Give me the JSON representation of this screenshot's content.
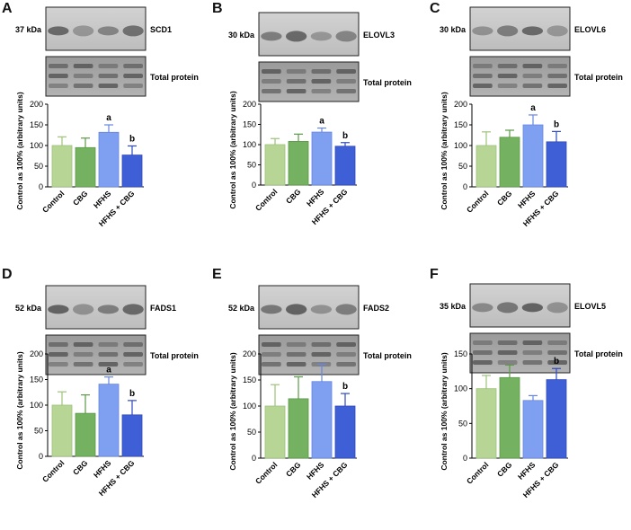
{
  "colors": {
    "control": "#b7d696",
    "control_stroke": "#9cc279",
    "cbg": "#74b160",
    "cbg_stroke": "#5b9a48",
    "hfhs": "#7f9ff0",
    "hfhs_stroke": "#6686e2",
    "hfhs_cbg": "#3f5fd6",
    "hfhs_cbg_stroke": "#2e49bf",
    "blot_border": "#222222"
  },
  "blot_labels": {
    "total_protein": "Total protein"
  },
  "chart_data": [
    {
      "panel": "A",
      "type": "bar",
      "protein": "SCD1",
      "kda": "37 kDa",
      "ylabel": "Control as 100% (arbitrary units)",
      "ylim": [
        0,
        200
      ],
      "yticks": [
        0,
        50,
        100,
        150,
        200
      ],
      "categories": [
        "Control",
        "CBG",
        "HFHS",
        "HFHS + CBG"
      ],
      "values": [
        100,
        95,
        132,
        77
      ],
      "errors": [
        21,
        23,
        18,
        22
      ],
      "annotations": [
        "",
        "",
        "a",
        "b"
      ]
    },
    {
      "panel": "B",
      "type": "bar",
      "protein": "ELOVL3",
      "kda": "30 kDa",
      "ylabel": "Control as 100% (arbitrary units)",
      "ylim": [
        0,
        200
      ],
      "yticks": [
        0,
        50,
        100,
        150,
        200
      ],
      "categories": [
        "Control",
        "CBG",
        "HFHS",
        "HFHS + CBG"
      ],
      "values": [
        100,
        108,
        131,
        96
      ],
      "errors": [
        15,
        18,
        10,
        9
      ],
      "annotations": [
        "",
        "",
        "a",
        "b"
      ]
    },
    {
      "panel": "C",
      "type": "bar",
      "protein": "ELOVL6",
      "kda": "30 kDa",
      "ylabel": "Control as 100% (arbitrary units)",
      "ylim": [
        0,
        200
      ],
      "yticks": [
        0,
        50,
        100,
        150,
        200
      ],
      "categories": [
        "Control",
        "CBG",
        "HFHS",
        "HFHS + CBG"
      ],
      "values": [
        100,
        120,
        150,
        109
      ],
      "errors": [
        33,
        17,
        24,
        25
      ],
      "annotations": [
        "",
        "",
        "a",
        "b"
      ]
    },
    {
      "panel": "D",
      "type": "bar",
      "protein": "FADS1",
      "kda": "52 kDa",
      "ylabel": "Control as 100% (arbitrary units)",
      "ylim": [
        0,
        200
      ],
      "yticks": [
        0,
        50,
        100,
        150,
        200
      ],
      "categories": [
        "Control",
        "CBG",
        "HFHS",
        "HFHS + CBG"
      ],
      "values": [
        100,
        84,
        141,
        81
      ],
      "errors": [
        26,
        36,
        14,
        28
      ],
      "annotations": [
        "",
        "",
        "a",
        "b"
      ]
    },
    {
      "panel": "E",
      "type": "bar",
      "protein": "FADS2",
      "kda": "52 kDa",
      "ylabel": "Control as 100% (arbitrary units)",
      "ylim": [
        0,
        200
      ],
      "yticks": [
        0,
        50,
        100,
        150,
        200
      ],
      "categories": [
        "Control",
        "CBG",
        "HFHS",
        "HFHS + CBG"
      ],
      "values": [
        100,
        114,
        147,
        100
      ],
      "errors": [
        41,
        42,
        33,
        24
      ],
      "annotations": [
        "",
        "",
        "",
        "b"
      ]
    },
    {
      "panel": "F",
      "type": "bar",
      "protein": "ELOVL5",
      "kda": "35 kDa",
      "ylabel": "Control as 100% (arbitrary units)",
      "ylim": [
        0,
        150
      ],
      "yticks": [
        0,
        50,
        100,
        150
      ],
      "categories": [
        "Control",
        "CBG",
        "HFHS",
        "HFHS + CBG"
      ],
      "values": [
        100,
        116,
        83,
        113
      ],
      "errors": [
        19,
        18,
        7,
        16
      ],
      "annotations": [
        "",
        "",
        "",
        "b"
      ]
    }
  ]
}
